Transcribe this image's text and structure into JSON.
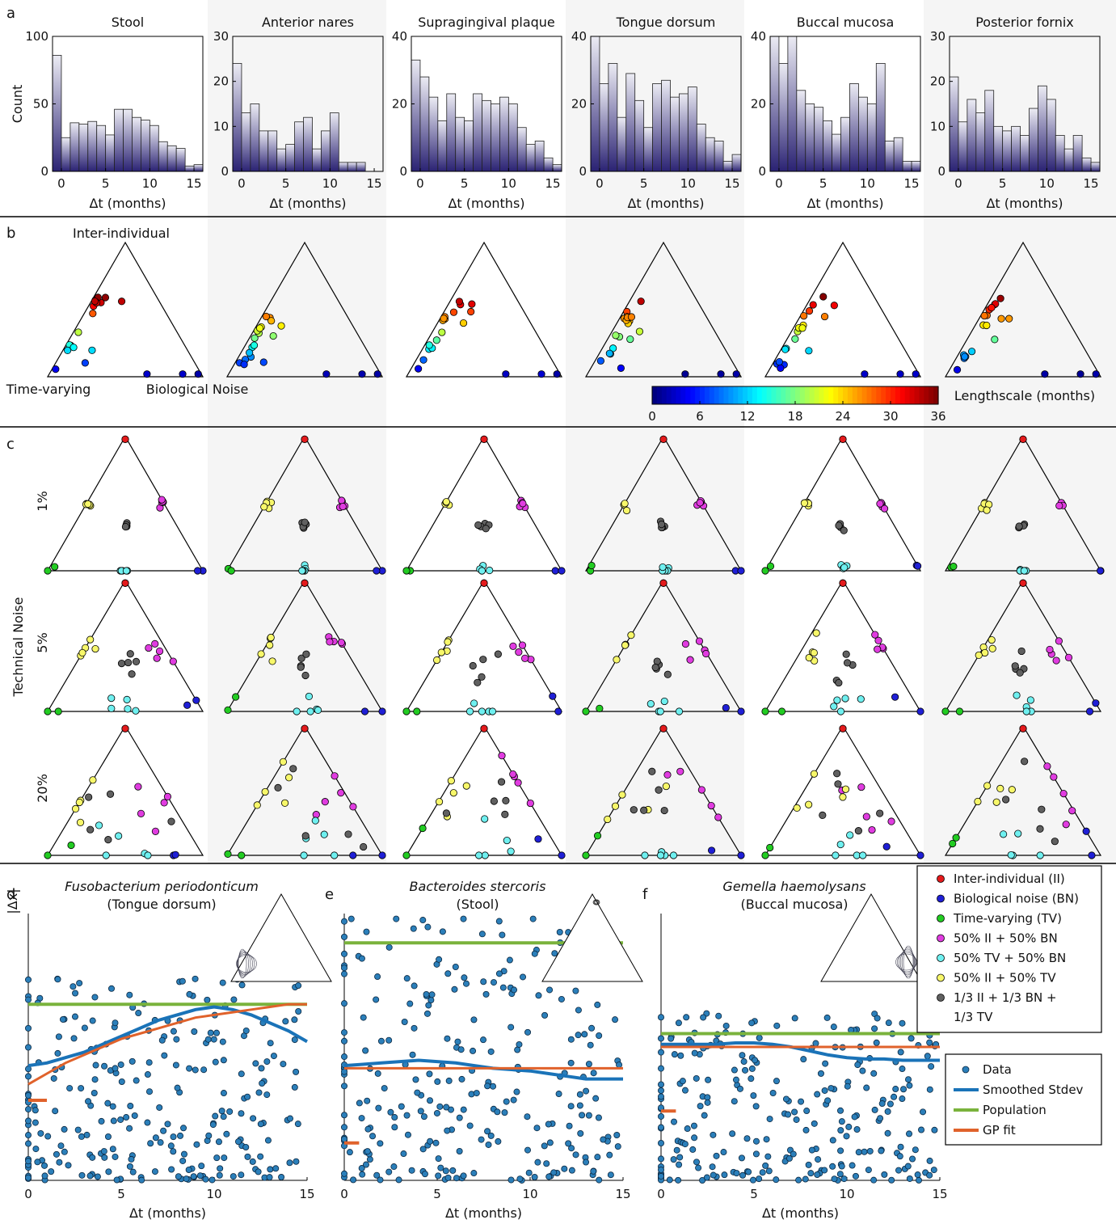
{
  "panel_letters": {
    "a": "a",
    "b": "b",
    "c": "c",
    "d": "d",
    "e": "e",
    "f": "f"
  },
  "colors": {
    "II": "#e41a1c",
    "BN": "#1f1fd6",
    "TV": "#22cc22",
    "IIBN": "#e03ce0",
    "TVBN": "#6ff0f0",
    "IITV": "#f7f76a",
    "ALL": "#606060",
    "bar_top": "#ececf4",
    "bar_bottom": "#2a2273",
    "shade": "#f5f5f5",
    "data_point": "#2b7fba",
    "smoothed": "#1a73b8",
    "population": "#7ab33c",
    "gp": "#e0622b"
  },
  "ternary_labels": {
    "top": "Inter-individual",
    "left": "Time-varying",
    "right": "Biological Noise"
  },
  "colorbar": {
    "label": "Lengthscale (months)",
    "ticks": [
      "0",
      "6",
      "12",
      "18",
      "24",
      "30",
      "36"
    ]
  },
  "technical_noise": {
    "label": "Technical Noise",
    "rows": [
      "1%",
      "5%",
      "20%"
    ]
  },
  "legend_components": [
    {
      "key": "II",
      "label": "Inter-individual (II)"
    },
    {
      "key": "BN",
      "label": "Biological noise (BN)"
    },
    {
      "key": "TV",
      "label": "Time-varying (TV)"
    },
    {
      "key": "IIBN",
      "label": "50% II + 50% BN"
    },
    {
      "key": "TVBN",
      "label": "50% TV + 50% BN"
    },
    {
      "key": "IITV",
      "label": "50% II + 50% TV"
    },
    {
      "key": "ALL",
      "label": "1/3 II + 1/3 BN +",
      "label2": "1/3 TV"
    }
  ],
  "legend_fit": [
    {
      "key": "data",
      "label": "Data"
    },
    {
      "key": "smoothed",
      "label": "Smoothed Stdev"
    },
    {
      "key": "population",
      "label": "Population"
    },
    {
      "key": "gp",
      "label": "GP fit"
    }
  ],
  "chart_data": [
    {
      "type": "bar",
      "title": "Stool",
      "xlabel": "Δt (months)",
      "ylabel": "Count",
      "ylim": [
        0,
        100
      ],
      "xlim": [
        -1,
        16
      ],
      "xticks": [
        0,
        5,
        10,
        15
      ],
      "yticks": [
        0,
        50,
        100
      ],
      "bin_width": 1,
      "x": [
        -0.5,
        0.5,
        1.5,
        2.5,
        3.5,
        4.5,
        5.5,
        6.5,
        7.5,
        8.5,
        9.5,
        10.5,
        11.5,
        12.5,
        13.5,
        14.5,
        15.5
      ],
      "values": [
        86,
        25,
        36,
        35,
        37,
        34,
        27,
        46,
        46,
        40,
        38,
        34,
        22,
        19,
        17,
        4,
        5
      ]
    },
    {
      "type": "bar",
      "title": "Anterior nares",
      "xlabel": "Δt (months)",
      "ylabel": "",
      "ylim": [
        0,
        30
      ],
      "xlim": [
        -1,
        16
      ],
      "xticks": [
        0,
        5,
        10,
        15
      ],
      "yticks": [
        0,
        10,
        20,
        30
      ],
      "bin_width": 1,
      "x": [
        -0.5,
        0.5,
        1.5,
        2.5,
        3.5,
        4.5,
        5.5,
        6.5,
        7.5,
        8.5,
        9.5,
        10.5,
        11.5,
        12.5,
        13.5,
        14.5,
        15.5
      ],
      "values": [
        24,
        13,
        15,
        9,
        9,
        5,
        6,
        11,
        12,
        5,
        9,
        13,
        2,
        2,
        2,
        0,
        0
      ]
    },
    {
      "type": "bar",
      "title": "Supragingival plaque",
      "xlabel": "Δt (months)",
      "ylabel": "",
      "ylim": [
        0,
        40
      ],
      "xlim": [
        -1,
        16
      ],
      "xticks": [
        0,
        5,
        10,
        15
      ],
      "yticks": [
        0,
        20,
        40
      ],
      "bin_width": 1,
      "x": [
        -0.5,
        0.5,
        1.5,
        2.5,
        3.5,
        4.5,
        5.5,
        6.5,
        7.5,
        8.5,
        9.5,
        10.5,
        11.5,
        12.5,
        13.5,
        14.5,
        15.5
      ],
      "values": [
        33,
        28,
        22,
        15,
        23,
        16,
        15,
        23,
        21,
        20,
        22,
        20,
        13,
        8,
        9,
        4,
        2
      ]
    },
    {
      "type": "bar",
      "title": "Tongue dorsum",
      "xlabel": "Δt (months)",
      "ylabel": "",
      "ylim": [
        0,
        40
      ],
      "xlim": [
        -1,
        16
      ],
      "xticks": [
        0,
        5,
        10,
        15
      ],
      "yticks": [
        0,
        20,
        40
      ],
      "bin_width": 1,
      "x": [
        -0.5,
        0.5,
        1.5,
        2.5,
        3.5,
        4.5,
        5.5,
        6.5,
        7.5,
        8.5,
        9.5,
        10.5,
        11.5,
        12.5,
        13.5,
        14.5,
        15.5
      ],
      "values": [
        40,
        26,
        32,
        16,
        29,
        21,
        13,
        26,
        27,
        22,
        23,
        25,
        14,
        10,
        9,
        3,
        5
      ]
    },
    {
      "type": "bar",
      "title": "Buccal mucosa",
      "xlabel": "Δt (months)",
      "ylabel": "",
      "ylim": [
        0,
        40
      ],
      "xlim": [
        -1,
        16
      ],
      "xticks": [
        0,
        5,
        10,
        15
      ],
      "yticks": [
        0,
        20,
        40
      ],
      "bin_width": 1,
      "x": [
        -0.5,
        0.5,
        1.5,
        2.5,
        3.5,
        4.5,
        5.5,
        6.5,
        7.5,
        8.5,
        9.5,
        10.5,
        11.5,
        12.5,
        13.5,
        14.5,
        15.5
      ],
      "values": [
        40,
        32,
        40,
        24,
        20,
        19,
        15,
        11,
        16,
        26,
        22,
        20,
        32,
        9,
        10,
        3,
        3
      ]
    },
    {
      "type": "bar",
      "title": "Posterior fornix",
      "xlabel": "Δt (months)",
      "ylabel": "",
      "ylim": [
        0,
        30
      ],
      "xlim": [
        -1,
        16
      ],
      "xticks": [
        0,
        5,
        10,
        15
      ],
      "yticks": [
        0,
        10,
        20,
        30
      ],
      "bin_width": 1,
      "x": [
        -0.5,
        0.5,
        1.5,
        2.5,
        3.5,
        4.5,
        5.5,
        6.5,
        7.5,
        8.5,
        9.5,
        10.5,
        11.5,
        12.5,
        13.5,
        14.5,
        15.5
      ],
      "values": [
        21,
        11,
        16,
        13,
        18,
        10,
        9,
        10,
        8,
        14,
        19,
        16,
        8,
        5,
        8,
        3,
        2
      ]
    },
    {
      "type": "scatter",
      "title": "Fusobacterium periodonticum",
      "subtitle": "(Tongue dorsum)",
      "xlabel": "Δt (months)",
      "ylabel": "|Δx|",
      "xlim": [
        0,
        15
      ],
      "xticks": [
        0,
        5,
        10,
        15
      ],
      "ylim": [
        0,
        100
      ],
      "population": 66,
      "smoothed": {
        "x": [
          0,
          1,
          2,
          3,
          4,
          5,
          6,
          7,
          8,
          9,
          10,
          11,
          12,
          13,
          14,
          15
        ],
        "y": [
          43,
          44,
          46,
          48,
          51,
          54,
          57,
          60,
          62,
          64,
          65,
          64,
          62,
          59,
          56,
          52
        ]
      },
      "gp": {
        "x": [
          0,
          0.5,
          1,
          2,
          3,
          4,
          5,
          6,
          7,
          8,
          9,
          10,
          11,
          12,
          13,
          14,
          15
        ],
        "y": [
          36,
          38,
          40,
          44,
          47,
          50,
          53,
          55,
          57,
          59,
          61,
          62,
          63,
          64,
          65,
          66,
          66
        ]
      },
      "gp_short": {
        "x": [
          0,
          1
        ],
        "y": [
          30,
          30
        ]
      },
      "inset": "left"
    },
    {
      "type": "scatter",
      "title": "Bacteroides stercoris",
      "subtitle": "(Stool)",
      "xlabel": "Δt (months)",
      "ylabel": "",
      "xlim": [
        0,
        15
      ],
      "xticks": [
        0,
        5,
        10,
        15
      ],
      "ylim": [
        0,
        100
      ],
      "population": 89,
      "smoothed": {
        "x": [
          0,
          1,
          2,
          3,
          4,
          5,
          6,
          7,
          8,
          9,
          10,
          11,
          12,
          13,
          14,
          15
        ],
        "y": [
          43,
          43.5,
          44,
          44.5,
          45,
          44.5,
          44,
          43,
          42,
          41.5,
          41,
          40,
          39,
          38,
          38,
          38
        ]
      },
      "gp": {
        "x": [
          0,
          1,
          2,
          3,
          4,
          5,
          6,
          7,
          8,
          9,
          10,
          11,
          12,
          13,
          14,
          15
        ],
        "y": [
          42,
          42,
          42,
          42,
          42,
          42,
          42,
          42,
          42,
          42,
          42,
          42,
          42,
          42,
          42,
          42
        ]
      },
      "gp_short": {
        "x": [
          0,
          0.8
        ],
        "y": [
          14,
          14
        ]
      },
      "inset": "top"
    },
    {
      "type": "scatter",
      "title": "Gemella haemolysans",
      "subtitle": "(Buccal mucosa)",
      "xlabel": "Δt (months)",
      "ylabel": "",
      "xlim": [
        0,
        15
      ],
      "xticks": [
        0,
        5,
        10,
        15
      ],
      "ylim": [
        0,
        100
      ],
      "population": 55,
      "smoothed": {
        "x": [
          0,
          1,
          2,
          3,
          4,
          5,
          6,
          7,
          8,
          9,
          10,
          11,
          12,
          13,
          14,
          15
        ],
        "y": [
          51,
          51,
          51,
          51,
          51.5,
          51.5,
          51,
          50,
          48.5,
          47,
          46,
          45.5,
          45.5,
          45,
          45,
          45
        ]
      },
      "gp": {
        "x": [
          0,
          1,
          2,
          3,
          4,
          5,
          6,
          7,
          8,
          9,
          10,
          11,
          12,
          13,
          14,
          15
        ],
        "y": [
          50,
          50,
          50,
          50,
          50,
          50,
          50,
          50,
          50,
          50,
          50,
          50,
          50,
          50,
          50,
          50
        ]
      },
      "gp_short": {
        "x": [
          0,
          0.8
        ],
        "y": [
          26,
          26
        ]
      },
      "inset": "right"
    }
  ]
}
